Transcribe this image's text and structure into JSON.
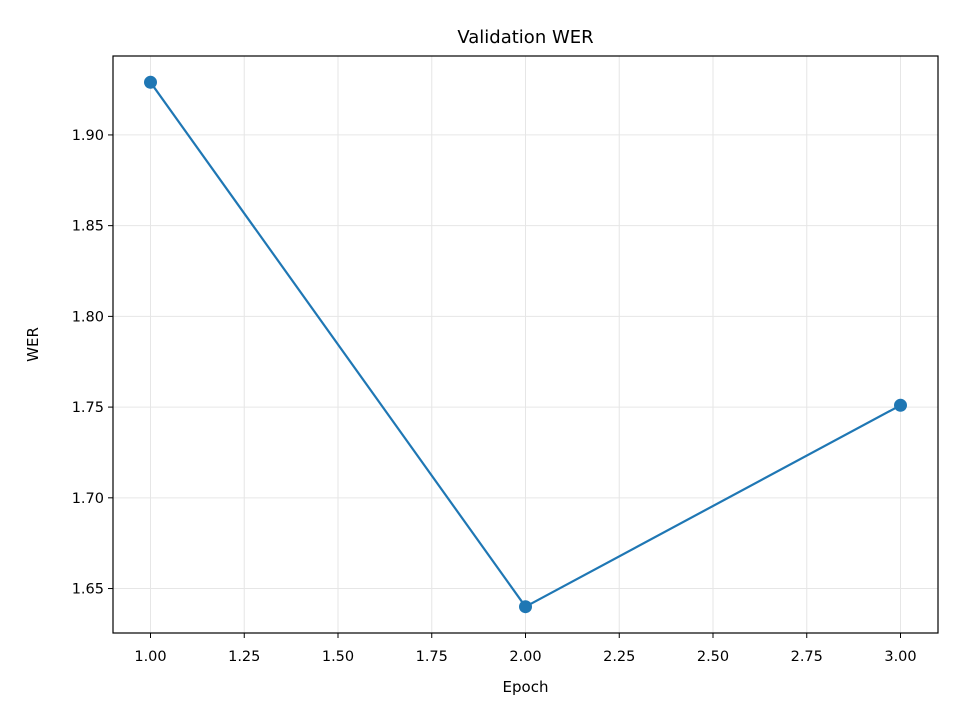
{
  "chart_data": {
    "type": "line",
    "title": "Validation WER",
    "xlabel": "Epoch",
    "ylabel": "WER",
    "x": [
      1,
      2,
      3
    ],
    "series": [
      {
        "values": [
          1.929,
          1.64,
          1.751
        ],
        "color": "#1f77b4",
        "marker": "circle"
      }
    ],
    "xlim": [
      0.9,
      3.1
    ],
    "ylim": [
      1.6255,
      1.9435
    ],
    "xticks": [
      1.0,
      1.25,
      1.5,
      1.75,
      2.0,
      2.25,
      2.5,
      2.75,
      3.0
    ],
    "xtick_labels": [
      "1.00",
      "1.25",
      "1.50",
      "1.75",
      "2.00",
      "2.25",
      "2.50",
      "2.75",
      "3.00"
    ],
    "yticks": [
      1.65,
      1.7,
      1.75,
      1.8,
      1.85,
      1.9
    ],
    "ytick_labels": [
      "1.65",
      "1.70",
      "1.75",
      "1.80",
      "1.85",
      "1.90"
    ],
    "grid": true,
    "grid_color": "#e6e6e6",
    "axis_color": "#000000"
  }
}
